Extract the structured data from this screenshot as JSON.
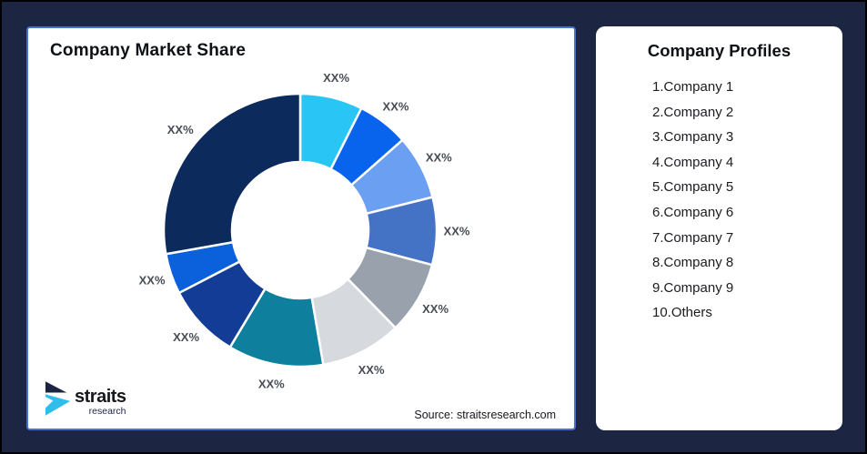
{
  "frame": {
    "background": "#1C2542",
    "border_color": "#000000"
  },
  "left_card": {
    "title": "Company Market Share",
    "source": "Source: straitsresearch.com",
    "border_color": "#4672CE",
    "logo": {
      "line1": "straits",
      "line2": "research",
      "navy": "#1B2542",
      "cyan": "#2FBDEB"
    }
  },
  "right_card": {
    "title": "Company Profiles",
    "items": [
      "1.Company 1",
      "2.Company 2",
      "3.Company 3",
      "4.Company 4",
      "5.Company 5",
      "6.Company 6",
      "7.Company 7",
      "8.Company 8",
      "9.Company 9",
      "10.Others"
    ]
  },
  "chart_data": {
    "type": "pie",
    "subtype": "donut",
    "title": "Company Market Share",
    "start_angle_deg": 0,
    "direction": "clockwise",
    "inner_radius_ratio": 0.5,
    "label_color": "#474D55",
    "gap_stroke": "#FFFFFF",
    "segments": [
      {
        "label": "XX%",
        "est_percent": 7.4,
        "color": "#29C5F4"
      },
      {
        "label": "XX%",
        "est_percent": 6.1,
        "color": "#0864EC"
      },
      {
        "label": "XX%",
        "est_percent": 7.6,
        "color": "#6B9FF2"
      },
      {
        "label": "XX%",
        "est_percent": 8.0,
        "color": "#4472C4"
      },
      {
        "label": "XX%",
        "est_percent": 8.6,
        "color": "#99A1AD"
      },
      {
        "label": "XX%",
        "est_percent": 9.6,
        "color": "#D6D9DE"
      },
      {
        "label": "XX%",
        "est_percent": 11.3,
        "color": "#0E7F9D"
      },
      {
        "label": "XX%",
        "est_percent": 8.8,
        "color": "#123C96"
      },
      {
        "label": "XX%",
        "est_percent": 4.8,
        "color": "#0B61DC"
      },
      {
        "label": "XX%",
        "est_percent": 27.8,
        "color": "#0C2A5C"
      }
    ],
    "note": "All segment data labels in the image read XX% (placeholders); est_percent values are estimated from arc angles."
  }
}
